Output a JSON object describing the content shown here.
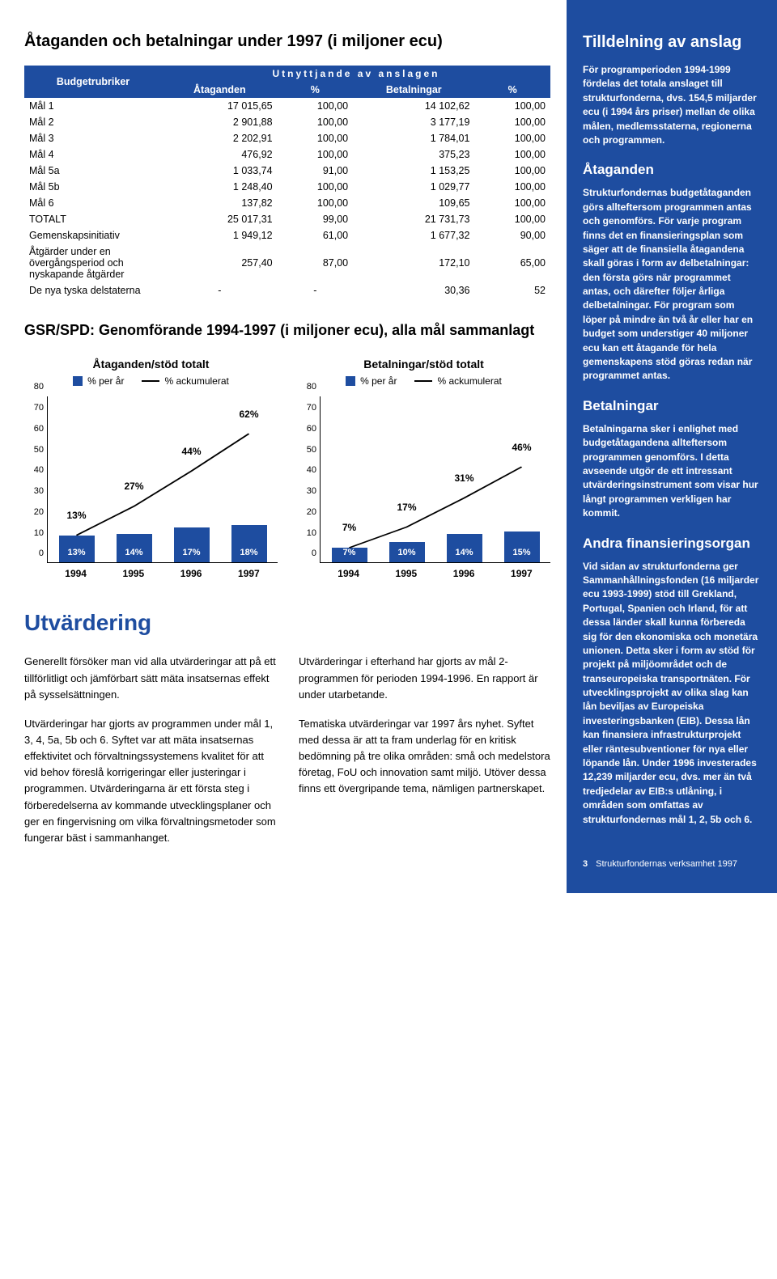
{
  "main_title": "Åtaganden och betalningar under 1997 (i miljoner ecu)",
  "table": {
    "header_budget": "Budgetrubriker",
    "header_super": "Utnyttjande av anslagen",
    "columns": [
      "Åtaganden",
      "%",
      "Betalningar",
      "%"
    ],
    "rows": [
      [
        "Mål 1",
        "17 015,65",
        "100,00",
        "14 102,62",
        "100,00"
      ],
      [
        "Mål 2",
        "2 901,88",
        "100,00",
        "3 177,19",
        "100,00"
      ],
      [
        "Mål 3",
        "2 202,91",
        "100,00",
        "1 784,01",
        "100,00"
      ],
      [
        "Mål 4",
        "476,92",
        "100,00",
        "375,23",
        "100,00"
      ],
      [
        "Mål 5a",
        "1 033,74",
        "91,00",
        "1 153,25",
        "100,00"
      ],
      [
        "Mål 5b",
        "1 248,40",
        "100,00",
        "1 029,77",
        "100,00"
      ],
      [
        "Mål 6",
        "137,82",
        "100,00",
        "109,65",
        "100,00"
      ],
      [
        "TOTALT",
        "25 017,31",
        "99,00",
        "21 731,73",
        "100,00"
      ],
      [
        "Gemenskapsinitiativ",
        "1 949,12",
        "61,00",
        "1 677,32",
        "90,00"
      ],
      [
        "Åtgärder under en övergångsperiod och nyskapande åtgärder",
        "257,40",
        "87,00",
        "172,10",
        "65,00"
      ],
      [
        "De nya tyska delstaterna",
        "-",
        "-",
        "30,36",
        "52"
      ]
    ]
  },
  "sub_title": "GSR/SPD: Genomförande 1994-1997 (i miljoner ecu), alla mål sammanlagt",
  "legend": {
    "per_year": "% per år",
    "cumulative": "% ackumulerat"
  },
  "chart_a": {
    "title": "Åtaganden/stöd totalt",
    "ymax": 80,
    "ytick": 10,
    "years": [
      "1994",
      "1995",
      "1996",
      "1997"
    ],
    "bars": [
      13,
      14,
      17,
      18
    ],
    "bar_labels": [
      "13%",
      "14%",
      "17%",
      "18%"
    ],
    "cum": [
      13,
      27,
      44,
      62
    ],
    "cum_labels": [
      "13%",
      "27%",
      "44%",
      "62%"
    ],
    "bar_color": "#1e4da0"
  },
  "chart_b": {
    "title": "Betalningar/stöd totalt",
    "ymax": 80,
    "ytick": 10,
    "years": [
      "1994",
      "1995",
      "1996",
      "1997"
    ],
    "bars": [
      7,
      10,
      14,
      15
    ],
    "bar_labels": [
      "7%",
      "10%",
      "14%",
      "15%"
    ],
    "cum": [
      7,
      17,
      31,
      46
    ],
    "cum_labels": [
      "7%",
      "17%",
      "31%",
      "46%"
    ],
    "bar_color": "#1e4da0"
  },
  "evaluation": {
    "title": "Utvärdering",
    "col1": [
      "Generellt försöker man vid alla utvärderingar att på ett tillförlitligt och jämförbart sätt mäta insatsernas effekt på sysselsättningen.",
      "Utvärderingar har gjorts av programmen under mål 1, 3, 4, 5a, 5b och 6. Syftet var att mäta insatsernas effektivitet och förvaltningssystemens kvalitet för att vid behov föreslå korrigeringar eller justeringar i programmen. Utvärderingarna är ett första steg i förberedelserna av kommande utvecklingsplaner och ger en fingervisning om vilka förvaltningsmetoder som fungerar bäst i sammanhanget."
    ],
    "col2": [
      "Utvärderingar i efterhand har gjorts av mål 2-programmen för perioden 1994-1996. En rapport är under utarbetande.",
      "Tematiska utvärderingar var 1997 års nyhet. Syftet med dessa är att ta fram underlag för en kritisk bedömning på tre olika områden: små och medelstora företag, FoU och innovation samt miljö. Utöver dessa finns ett övergripande tema, nämligen partnerskapet."
    ]
  },
  "sidebar": {
    "h_alloc": "Tilldelning av anslag",
    "p_alloc": "För programperioden 1994-1999 fördelas det totala anslaget till strukturfonderna, dvs. 154,5 miljarder ecu (i 1994 års priser) mellan de olika målen, medlemsstaterna, regionerna och programmen.",
    "h_commit": "Åtaganden",
    "p_commit": "Strukturfondernas budgetåtaganden görs allteftersom programmen antas och genomförs. För varje program finns det en finansieringsplan som säger att de finansiella åtagandena skall göras i form av delbetalningar: den första görs när programmet antas, och därefter följer årliga delbetalningar. För program som löper på mindre än två år eller har en budget som understiger 40 miljoner ecu kan ett åtagande för hela gemenskapens stöd göras redan när programmet antas.",
    "h_pay": "Betalningar",
    "p_pay": "Betalningarna sker i enlighet med budgetåtagandena allteftersom programmen genomförs. I detta avseende utgör de ett intressant utvärderingsinstrument som visar hur långt programmen verkligen har kommit.",
    "h_other": "Andra finansieringsorgan",
    "p_other": "Vid sidan av strukturfonderna ger Sammanhållningsfonden (16 miljarder ecu 1993-1999) stöd till Grekland, Portugal, Spanien och Irland, för att dessa länder skall kunna förbereda sig för den ekonomiska och monetära unionen. Detta sker i form av stöd för projekt på miljöområdet och de transeuropeiska transportnäten. För utvecklingsprojekt av olika slag kan lån beviljas av Europeiska investeringsbanken (EIB). Dessa lån kan finansiera infrastrukturprojekt eller räntesubventioner för nya eller löpande lån. Under 1996 investerades 12,239 miljarder ecu, dvs. mer än två tredjedelar av EIB:s utlåning, i områden som omfattas av strukturfondernas mål 1, 2, 5b och 6.",
    "page_num": "3",
    "page_label": "Strukturfondernas verksamhet 1997"
  }
}
